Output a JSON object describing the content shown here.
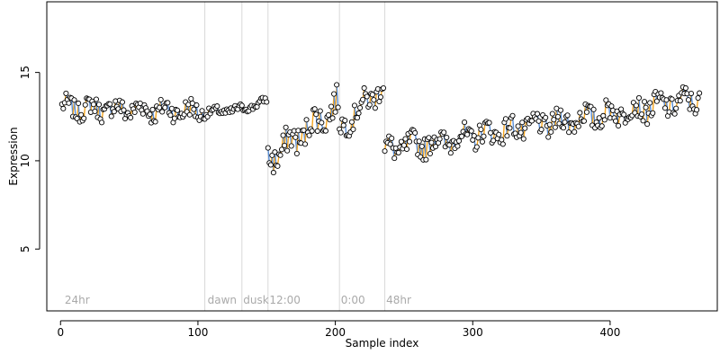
{
  "chart_data": {
    "type": "scatter",
    "title": "",
    "xlabel": "Sample index",
    "ylabel": "Expression",
    "xlim": [
      -10,
      478
    ],
    "ylim": [
      1.5,
      19
    ],
    "x_ticks": [
      0,
      100,
      200,
      300,
      400
    ],
    "y_ticks": [
      5,
      10,
      15
    ],
    "grid": false,
    "legend": "none",
    "colors": {
      "point_fill": "#ffffff",
      "point_edge": "#000000",
      "up_segment": "#f5a623",
      "down_segment": "#5b8fd6",
      "separator": "#d9d9d9",
      "region_label": "#aaaaaa"
    },
    "regions": [
      {
        "label": "24hr",
        "x": 3
      },
      {
        "label": "dawn",
        "x": 107
      },
      {
        "label": "dusk",
        "x": 133
      },
      {
        "label": "12:00",
        "x": 152
      },
      {
        "label": "0:00",
        "x": 204
      },
      {
        "label": "48hr",
        "x": 237
      }
    ],
    "separators": [
      105,
      132,
      151,
      203,
      236
    ],
    "segments": [
      {
        "x": [
          1,
          104
        ],
        "y": [
          13.0,
          12.8
        ],
        "noise": 0.7
      },
      {
        "x": [
          105,
          131
        ],
        "y": [
          12.7,
          12.9
        ],
        "noise": 0.3
      },
      {
        "x": [
          132,
          150
        ],
        "y": [
          12.9,
          13.4
        ],
        "noise": 0.25
      },
      {
        "x": [
          151,
          202
        ],
        "y": [
          10.0,
          13.2
        ],
        "noise": 1.0
      },
      {
        "x": [
          203,
          235
        ],
        "y": [
          11.8,
          14.3
        ],
        "noise": 0.8
      },
      {
        "x": [
          236,
          465
        ],
        "y": [
          10.6,
          13.5
        ],
        "noise": 0.8
      }
    ]
  }
}
